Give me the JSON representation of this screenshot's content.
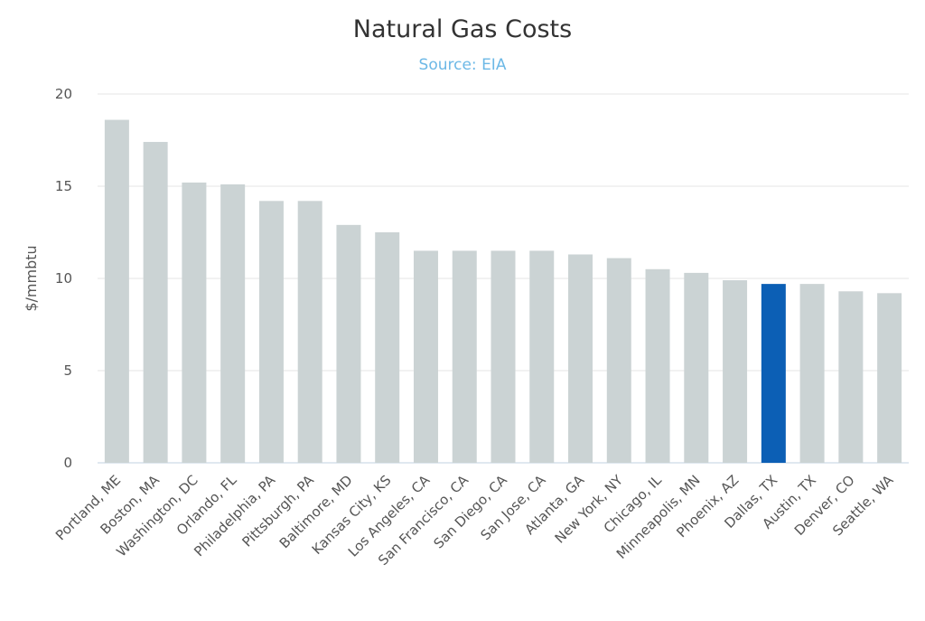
{
  "chart_data": {
    "type": "bar",
    "title": "Natural Gas Costs",
    "subtitle": "Source: EIA",
    "xlabel": "",
    "ylabel": "$/mmbtu",
    "ylim": [
      0,
      20
    ],
    "yticks": [
      0,
      5,
      10,
      15,
      20
    ],
    "grid": true,
    "legend": "none",
    "categories": [
      "Portland, ME",
      "Boston, MA",
      "Washington, DC",
      "Orlando, FL",
      "Philadelphia, PA",
      "Pittsburgh, PA",
      "Baltimore, MD",
      "Kansas City, KS",
      "Los Angeles, CA",
      "San Francisco, CA",
      "San Diego, CA",
      "San Jose, CA",
      "Atlanta, GA",
      "New York, NY",
      "Chicago, IL",
      "Minneapolis, MN",
      "Phoenix, AZ",
      "Dallas, TX",
      "Austin, TX",
      "Denver, CO",
      "Seattle, WA"
    ],
    "values": [
      18.6,
      17.4,
      15.2,
      15.1,
      14.2,
      14.2,
      12.9,
      12.5,
      11.5,
      11.5,
      11.5,
      11.5,
      11.3,
      11.1,
      10.5,
      10.3,
      9.9,
      9.7,
      9.7,
      9.3,
      9.2
    ],
    "highlight_index": 17,
    "colors": {
      "bar": "#cbd3d4",
      "highlight": "#0c5fb5",
      "grid": "#e6e6e6",
      "subtitle": "#6cb8e6",
      "title": "#333333",
      "axis_text": "#555555"
    }
  }
}
